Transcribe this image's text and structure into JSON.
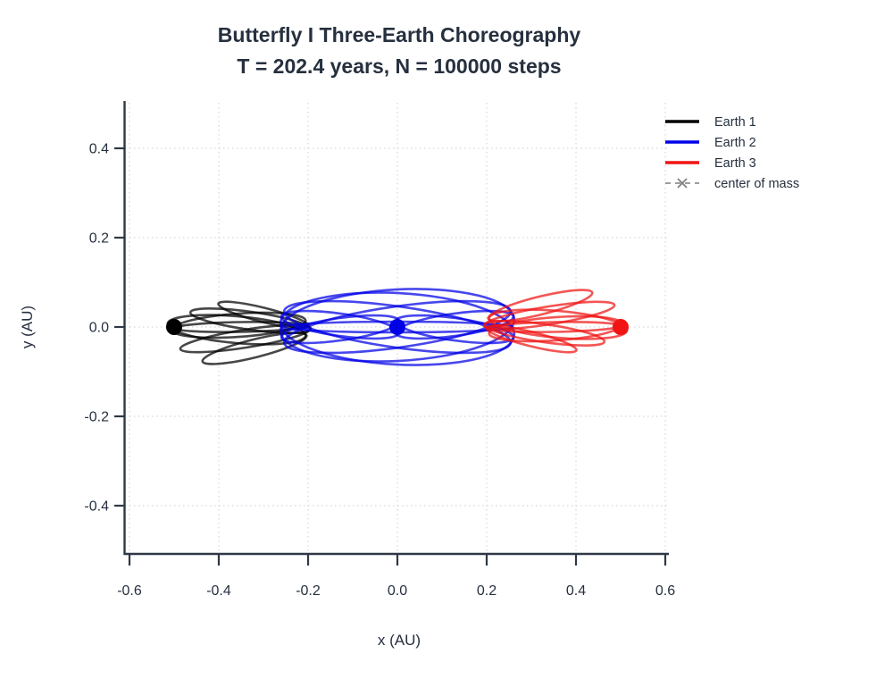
{
  "style": {
    "background": "#ffffff",
    "text_color": "#26303f",
    "axis_color": "#2e3846",
    "grid_color": "#d3d7dc",
    "com_color": "#7f7f7f"
  },
  "chart_data": {
    "type": "line",
    "title": "Butterfly I Three-Earth Choreography",
    "subtitle": "T = 202.4 years, N = 100000 steps",
    "xlabel": "x (AU)",
    "ylabel": "y (AU)",
    "xlim": [
      -0.65,
      0.61
    ],
    "ylim": [
      -0.51,
      0.5
    ],
    "grid": true,
    "legend_position": "top-right",
    "x_ticks": [
      -0.6,
      -0.4,
      -0.2,
      0.0,
      0.2,
      0.4,
      0.6
    ],
    "x_tick_labels": [
      "-0.6",
      "-0.4",
      "-0.2",
      "0.0",
      "0.2",
      "0.4",
      "0.6"
    ],
    "y_ticks": [
      -0.4,
      -0.2,
      0.0,
      0.2,
      0.4
    ],
    "y_tick_labels": [
      "-0.4",
      "-0.2",
      "0.0",
      "0.2",
      "0.4"
    ],
    "series": [
      {
        "name": "Earth 1",
        "color": "#000000",
        "line_opacity": 0.72,
        "marker": {
          "x": -0.5,
          "y": 0.0
        },
        "trajectory_loops": [
          [
            -0.36,
            -0.006,
            0.155,
            0.03,
            -5
          ],
          [
            -0.355,
            0.004,
            0.15,
            0.026,
            4
          ],
          [
            -0.352,
            0.0,
            0.148,
            0.011,
            1
          ],
          [
            -0.3,
            0.027,
            0.104,
            0.016,
            -14
          ],
          [
            -0.33,
            0.014,
            0.135,
            0.02,
            -8
          ],
          [
            -0.32,
            -0.048,
            0.12,
            0.02,
            14
          ],
          [
            -0.34,
            -0.026,
            0.148,
            0.02,
            9
          ]
        ]
      },
      {
        "name": "Earth 2",
        "color": "#0000e6",
        "line_opacity": 0.72,
        "marker": {
          "x": 0.0,
          "y": 0.0
        },
        "trajectory_loops": [
          [
            0.0,
            0.004,
            0.262,
            0.08,
            3
          ],
          [
            0.0,
            -0.004,
            0.262,
            0.08,
            -3
          ],
          [
            0.0,
            0.0,
            0.256,
            0.046,
            8
          ],
          [
            0.0,
            0.0,
            0.256,
            0.046,
            -8
          ],
          [
            -0.128,
            0.005,
            0.133,
            0.025,
            -8
          ],
          [
            -0.128,
            -0.005,
            0.133,
            0.025,
            8
          ],
          [
            0.128,
            0.005,
            0.133,
            0.025,
            8
          ],
          [
            0.128,
            -0.005,
            0.133,
            0.025,
            -8
          ],
          [
            0.0,
            0.0,
            0.258,
            0.012,
            0
          ]
        ]
      },
      {
        "name": "Earth 3",
        "color": "#f01414",
        "line_opacity": 0.72,
        "marker": {
          "x": 0.5,
          "y": 0.0
        },
        "trajectory_loops": [
          [
            0.36,
            0.006,
            0.155,
            0.03,
            -5
          ],
          [
            0.355,
            -0.004,
            0.15,
            0.026,
            4
          ],
          [
            0.352,
            0.0,
            0.148,
            0.011,
            1
          ],
          [
            0.3,
            -0.027,
            0.104,
            0.016,
            -14
          ],
          [
            0.33,
            -0.014,
            0.135,
            0.02,
            -8
          ],
          [
            0.32,
            0.048,
            0.12,
            0.02,
            14
          ],
          [
            0.34,
            0.026,
            0.148,
            0.02,
            9
          ]
        ]
      }
    ],
    "center_of_mass": {
      "name": "center of mass",
      "x": 0.0,
      "y": 0.0
    }
  }
}
